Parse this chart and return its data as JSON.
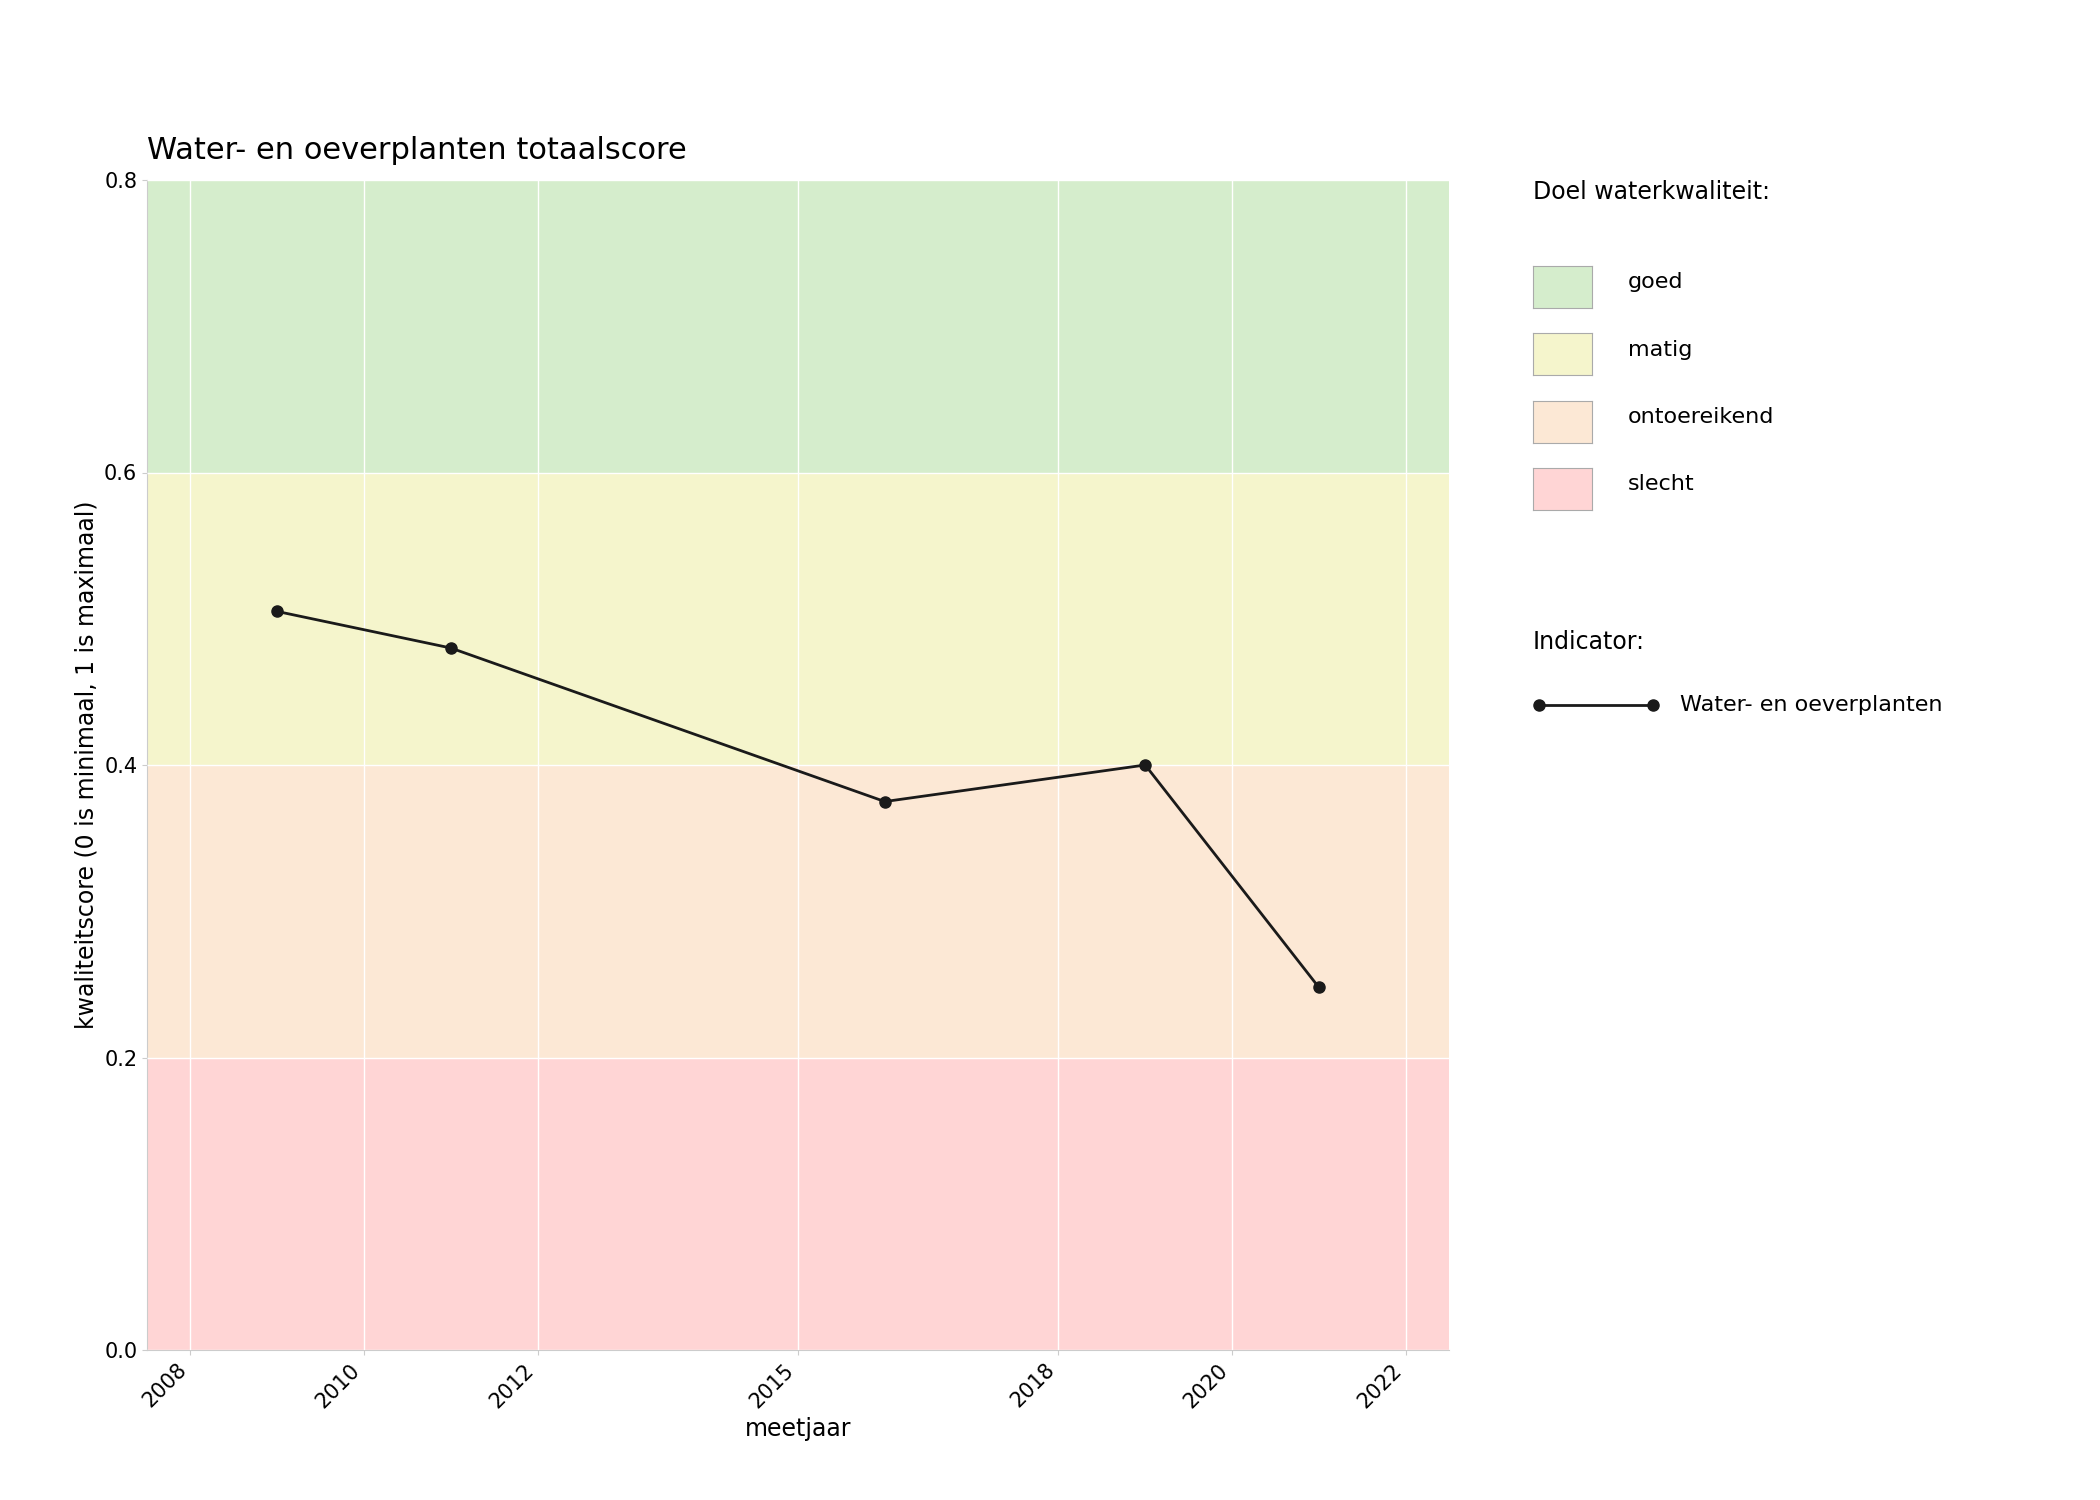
{
  "title": "Water- en oeverplanten totaalscore",
  "xlabel": "meetjaar",
  "ylabel": "kwaliteitscore (0 is minimaal, 1 is maximaal)",
  "years": [
    2009,
    2011,
    2016,
    2019,
    2021
  ],
  "values": [
    0.505,
    0.48,
    0.375,
    0.4,
    0.248
  ],
  "xlim": [
    2007.5,
    2022.5
  ],
  "ylim": [
    0.0,
    0.8
  ],
  "xticks": [
    2008,
    2010,
    2012,
    2015,
    2018,
    2020,
    2022
  ],
  "yticks": [
    0.0,
    0.2,
    0.4,
    0.6,
    0.8
  ],
  "fig_bg_color": "#ffffff",
  "plot_bg": "#ffffff",
  "color_goed": "#d5edcc",
  "color_matig": "#f5f5cc",
  "color_ontoereikend": "#fce8d5",
  "color_slecht": "#ffd5d5",
  "line_color": "#1a1a1a",
  "marker_color": "#1a1a1a",
  "marker_size": 8,
  "line_width": 2.0,
  "title_fontsize": 22,
  "label_fontsize": 17,
  "tick_fontsize": 15,
  "legend_fontsize": 16,
  "legend_title_fontsize": 17
}
